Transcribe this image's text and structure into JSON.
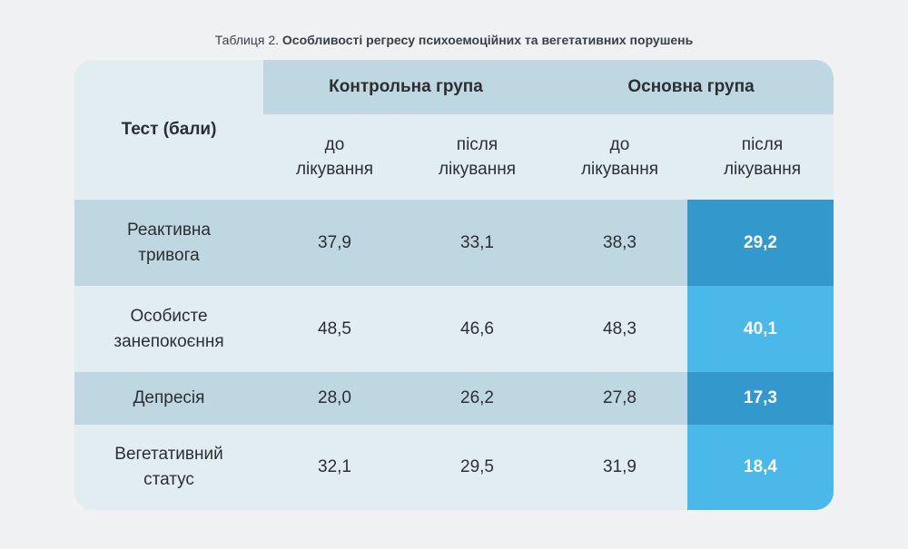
{
  "caption": {
    "prefix": "Таблиця 2. ",
    "title": "Особливості регресу психоемоційних та вегетативних порушень"
  },
  "table": {
    "test_header": "Тест (бали)",
    "groups": [
      "Контрольна група",
      "Основна група"
    ],
    "sub_headers": [
      [
        "до",
        "лікування"
      ],
      [
        "після",
        "лікування"
      ],
      [
        "до",
        "лікування"
      ],
      [
        "після",
        "лікування"
      ]
    ],
    "rows": [
      {
        "label": [
          "Реактивна",
          "тривога"
        ],
        "values": [
          "37,9",
          "33,1",
          "38,3",
          "29,2"
        ]
      },
      {
        "label": [
          "Особисте",
          "занепокоєння"
        ],
        "values": [
          "48,5",
          "46,6",
          "48,3",
          "40,1"
        ]
      },
      {
        "label": [
          "Депресія"
        ],
        "values": [
          "28,0",
          "26,2",
          "27,8",
          "17,3"
        ]
      },
      {
        "label": [
          "Вегетативний",
          "статус"
        ],
        "values": [
          "32,1",
          "29,5",
          "31,9",
          "18,4"
        ]
      }
    ]
  },
  "colors": {
    "background": "#eff1f3",
    "row_dark": "#bfd7e0",
    "row_light": "#e2edf2",
    "highlight_dark": "#3399cc",
    "highlight_light": "#4ab8e8"
  }
}
